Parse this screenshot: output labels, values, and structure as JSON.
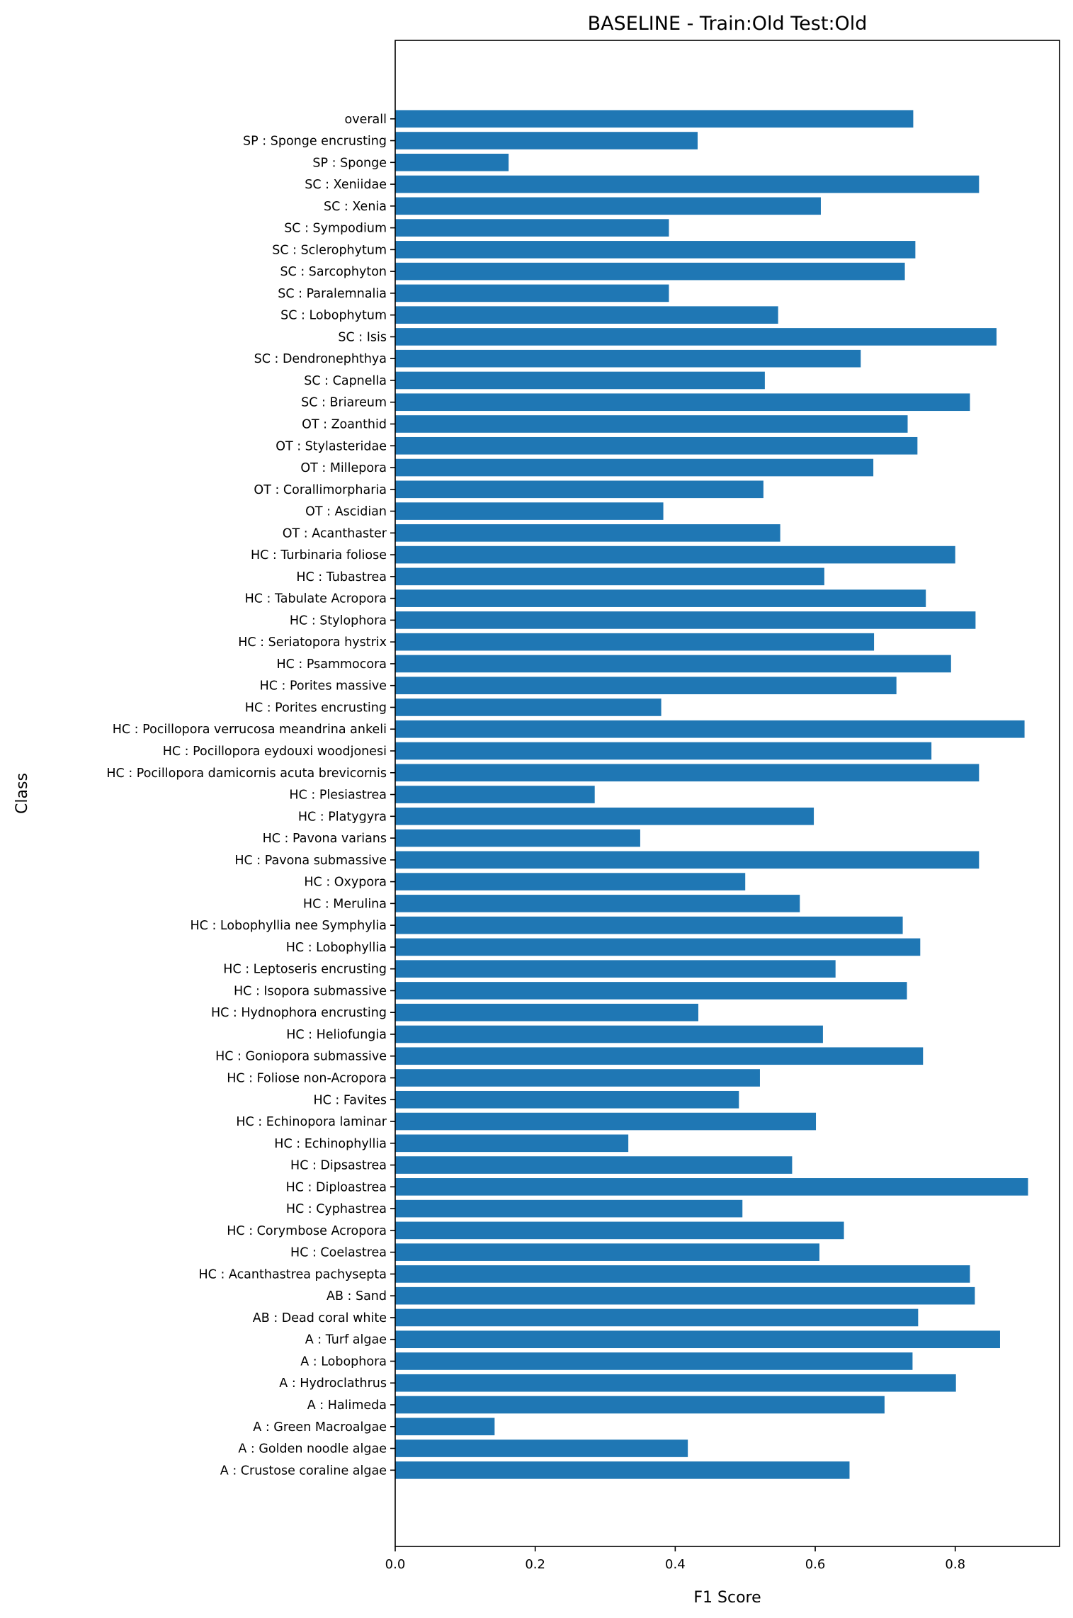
{
  "chart_data": {
    "type": "bar",
    "orientation": "horizontal",
    "title": "BASELINE - Train:Old Test:Old",
    "xlabel": "F1 Score",
    "ylabel": "Class",
    "xlim": [
      0,
      0.949
    ],
    "ylim": [
      -3.5,
      65.6
    ],
    "grid": false,
    "legend": null,
    "bar_color": "#1f77b4",
    "x_ticks": [
      0.0,
      0.2,
      0.4,
      0.6,
      0.8
    ],
    "x_tick_labels": [
      "0.0",
      "0.2",
      "0.4",
      "0.6",
      "0.8"
    ],
    "categories": [
      "A : Crustose coraline algae",
      "A : Golden noodle algae",
      "A : Green Macroalgae",
      "A : Halimeda",
      "A : Hydroclathrus",
      "A : Lobophora",
      "A : Turf algae",
      "AB : Dead coral white",
      "AB : Sand",
      "HC : Acanthastrea pachysepta",
      "HC : Coelastrea",
      "HC : Corymbose Acropora",
      "HC : Cyphastrea",
      "HC : Diploastrea",
      "HC : Dipsastrea",
      "HC : Echinophyllia",
      "HC : Echinopora laminar",
      "HC : Favites",
      "HC : Foliose non-Acropora",
      "HC : Goniopora submassive",
      "HC : Heliofungia",
      "HC : Hydnophora encrusting",
      "HC : Isopora submassive",
      "HC : Leptoseris encrusting",
      "HC : Lobophyllia",
      "HC : Lobophyllia nee Symphylia",
      "HC : Merulina",
      "HC : Oxypora",
      "HC : Pavona submassive",
      "HC : Pavona varians",
      "HC : Platygyra",
      "HC : Plesiastrea",
      "HC : Pocillopora damicornis acuta brevicornis",
      "HC : Pocillopora eydouxi woodjonesi",
      "HC : Pocillopora verrucosa meandrina ankeli",
      "HC : Porites encrusting",
      "HC : Porites massive",
      "HC : Psammocora",
      "HC : Seriatopora hystrix",
      "HC : Stylophora",
      "HC : Tabulate Acropora",
      "HC : Tubastrea",
      "HC : Turbinaria foliose",
      "OT : Acanthaster",
      "OT : Ascidian",
      "OT : Corallimorpharia",
      "OT : Millepora",
      "OT : Stylasteridae",
      "OT : Zoanthid",
      "SC : Briareum",
      "SC : Capnella",
      "SC : Dendronephthya",
      "SC : Isis",
      "SC : Lobophytum",
      "SC : Paralemnalia",
      "SC : Sarcophyton",
      "SC : Sclerophytum",
      "SC : Sympodium",
      "SC : Xenia",
      "SC : Xeniidae",
      "SP : Sponge",
      "SP : Sponge encrusting",
      "overall"
    ],
    "values": [
      0.649,
      0.418,
      0.142,
      0.699,
      0.801,
      0.739,
      0.864,
      0.747,
      0.828,
      0.821,
      0.606,
      0.641,
      0.496,
      0.904,
      0.567,
      0.333,
      0.601,
      0.491,
      0.521,
      0.754,
      0.611,
      0.433,
      0.731,
      0.629,
      0.75,
      0.725,
      0.578,
      0.5,
      0.834,
      0.35,
      0.598,
      0.285,
      0.834,
      0.766,
      0.899,
      0.38,
      0.716,
      0.794,
      0.684,
      0.829,
      0.758,
      0.613,
      0.8,
      0.55,
      0.383,
      0.526,
      0.683,
      0.746,
      0.732,
      0.821,
      0.528,
      0.665,
      0.859,
      0.547,
      0.391,
      0.728,
      0.743,
      0.391,
      0.608,
      0.834,
      0.162,
      0.432,
      0.74
    ]
  }
}
